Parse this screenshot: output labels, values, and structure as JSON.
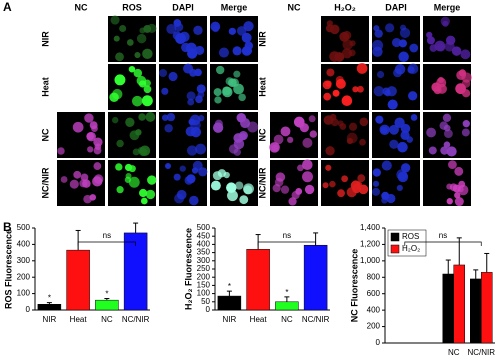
{
  "panel_a": {
    "label": "A",
    "left_headers": [
      {
        "text": "NC",
        "color": "#c040c0"
      },
      {
        "text": "ROS",
        "color": "#20a020"
      },
      {
        "text": "DAPI",
        "color": "#2020c0"
      },
      {
        "text": "Merge",
        "color": "#000000"
      }
    ],
    "right_headers": [
      {
        "text": "NC",
        "color": "#c040c0"
      },
      {
        "text": "H₂O₂",
        "color": "#e02020"
      },
      {
        "text": "DAPI",
        "color": "#2020c0"
      },
      {
        "text": "Merge",
        "color": "#000000"
      }
    ],
    "row_labels": [
      "NIR",
      "Heat",
      "NC",
      "NC/NIR"
    ]
  },
  "panel_b": {
    "label": "B"
  },
  "chart_data": [
    {
      "type": "bar",
      "ylabel": "ROS Fluorescence",
      "categories": [
        "NIR",
        "Heat",
        "NC",
        "NC/NIR"
      ],
      "values": [
        35,
        365,
        60,
        470
      ],
      "errors": [
        10,
        120,
        10,
        60
      ],
      "colors": [
        "#000000",
        "#ff1010",
        "#20ff20",
        "#1010ff"
      ],
      "asterisks": [
        "*",
        null,
        "*",
        null
      ],
      "bracket_label": "ns",
      "ylim": [
        0,
        500
      ],
      "yticks": [
        0,
        100,
        200,
        300,
        400,
        500
      ]
    },
    {
      "type": "bar",
      "ylabel": "H₂O₂ Fluorescence",
      "categories": [
        "NIR",
        "Heat",
        "NC",
        "NC/NIR"
      ],
      "values": [
        85,
        370,
        50,
        395
      ],
      "errors": [
        30,
        90,
        30,
        75
      ],
      "colors": [
        "#000000",
        "#ff1010",
        "#20ff20",
        "#1010ff"
      ],
      "asterisks": [
        "*",
        null,
        "*",
        null
      ],
      "bracket_label": "ns",
      "ylim": [
        0,
        500
      ],
      "yticks": [
        0,
        50,
        100,
        150,
        200,
        250,
        300,
        350,
        400,
        450,
        500
      ]
    },
    {
      "type": "grouped_bar",
      "ylabel": "NC Fluorescence",
      "categories": [
        null,
        null,
        "NC",
        "NC/NIR"
      ],
      "series": [
        {
          "name": "ROS",
          "color": "#000000",
          "values": [
            null,
            null,
            840,
            780
          ],
          "errors": [
            null,
            null,
            170,
            110
          ]
        },
        {
          "name": "H₂O₂",
          "color": "#ff1010",
          "values": [
            null,
            null,
            950,
            860
          ],
          "errors": [
            null,
            null,
            330,
            230
          ]
        }
      ],
      "legend": "top-left",
      "bracket_label": "ns",
      "ylim": [
        0,
        1400
      ],
      "yticks": [
        0,
        {
          "value": 200,
          "label": "200"
        },
        {
          "value": 400,
          "label": "400"
        },
        {
          "value": 600,
          "label": "600"
        },
        {
          "value": 800,
          "label": "800"
        },
        {
          "value": 1000,
          "label": "1,000"
        },
        {
          "value": 1200,
          "label": "1,200"
        },
        {
          "value": 1400,
          "label": "1,400"
        }
      ]
    }
  ]
}
